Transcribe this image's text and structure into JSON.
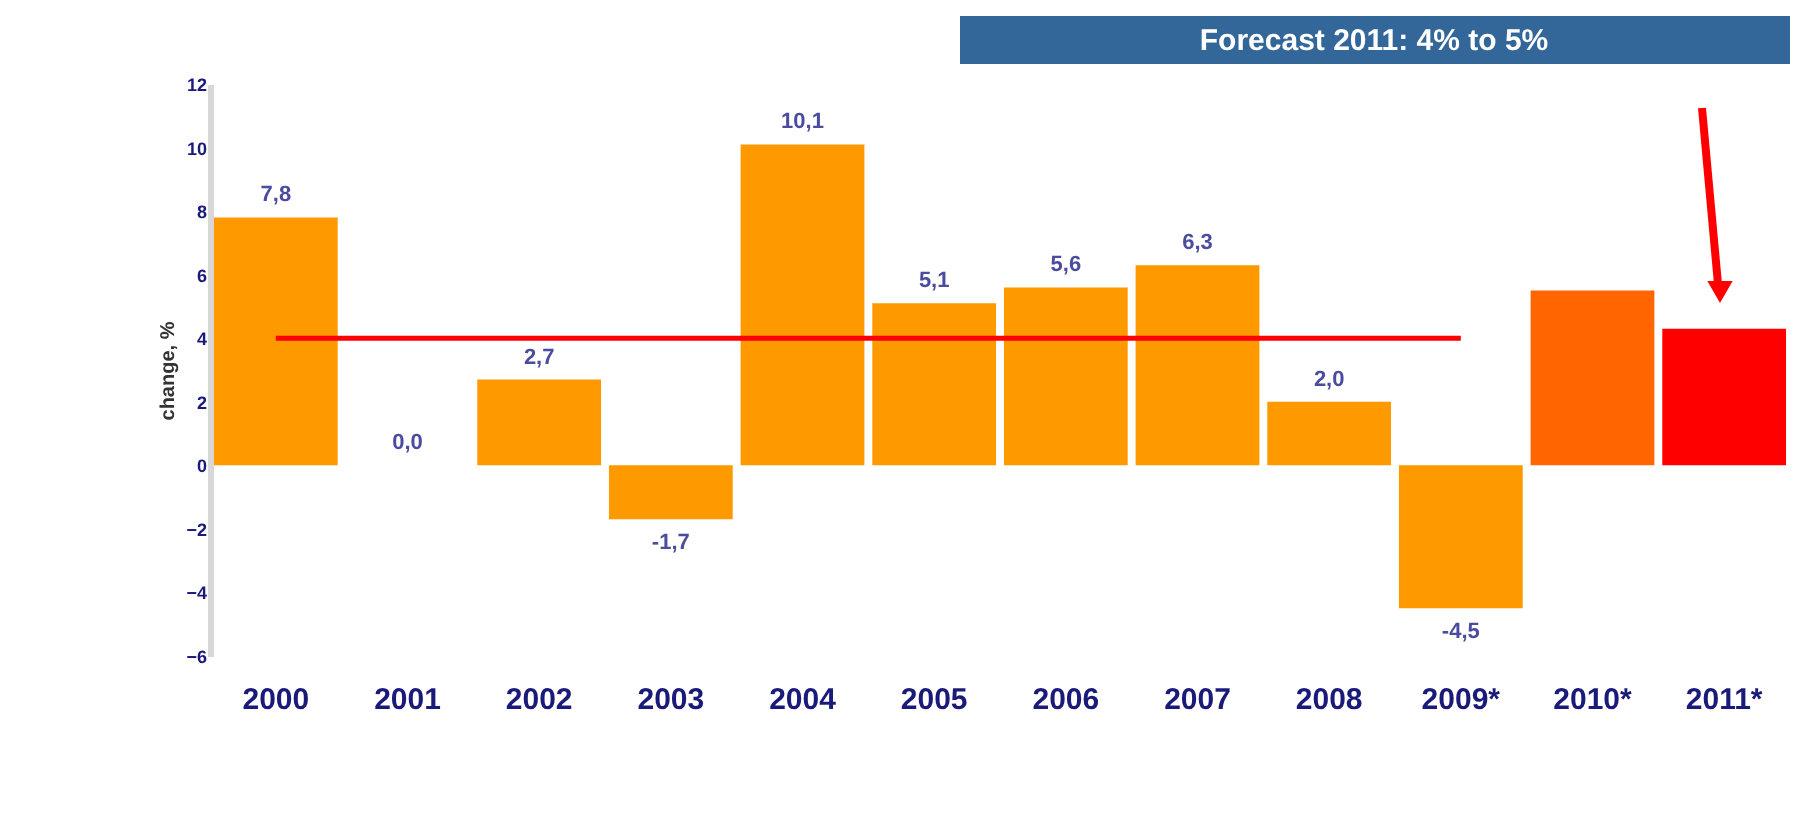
{
  "chart_data": {
    "type": "bar",
    "categories": [
      "2000",
      "2001",
      "2002",
      "2003",
      "2004",
      "2005",
      "2006",
      "2007",
      "2008",
      "2009*",
      "2010*",
      "2011*"
    ],
    "ylabel": "change, %",
    "series": [
      {
        "values": [
          7.8,
          0.0,
          2.7,
          -1.7,
          10.1,
          5.1,
          5.6,
          6.3,
          2.0,
          -4.5,
          5.5,
          4.3
        ],
        "colors": [
          "#ff9900",
          "#ff9900",
          "#ff9900",
          "#ff9900",
          "#ff9900",
          "#ff9900",
          "#ff9900",
          "#ff9900",
          "#ff9900",
          "#ff9900",
          "#ff6600",
          "#ff0000"
        ],
        "value_labels": [
          "7,8",
          "0,0",
          "2,7",
          "-1,7",
          "10,1",
          "5,1",
          "5,6",
          "6,3",
          "2,0",
          "-4,5",
          null,
          null
        ]
      },
      {
        "type": "line",
        "color": "#ff0000",
        "values": [
          4,
          4,
          4,
          4,
          4,
          4,
          4,
          4,
          4,
          4,
          null,
          null
        ]
      }
    ],
    "ylim": [
      -6,
      12
    ],
    "yticks": [
      -6,
      -4,
      -2,
      0,
      2,
      4,
      6,
      8,
      10,
      12
    ],
    "grid": false,
    "annotations": [
      "Forecast 2011: 4% to 5%"
    ]
  }
}
